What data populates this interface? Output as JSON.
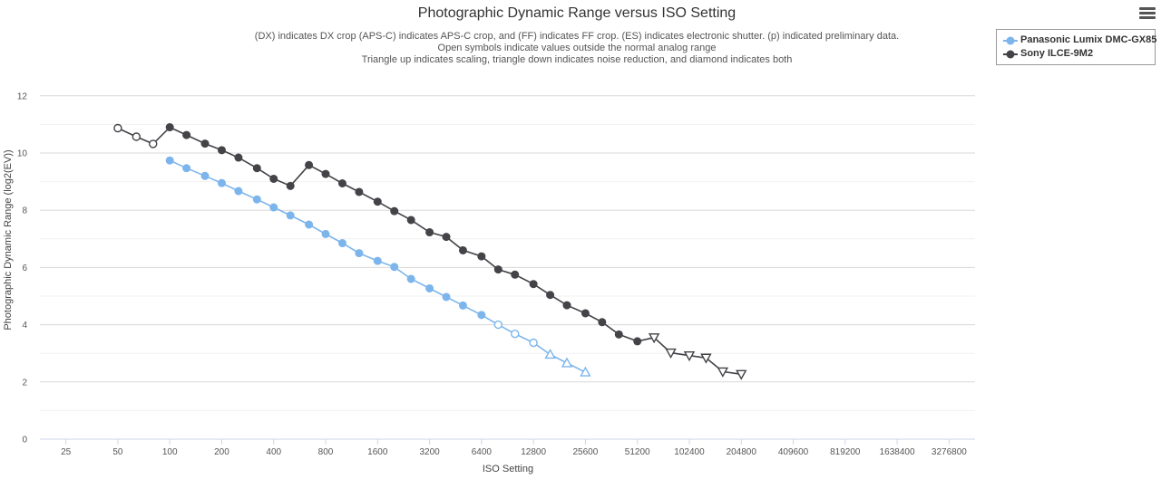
{
  "chart_data": {
    "type": "line",
    "title": "Photographic Dynamic Range versus ISO Setting",
    "subtitles": [
      "(DX) indicates DX crop (APS-C) indicates APS-C crop, and (FF) indicates FF crop. (ES) indicates electronic shutter. (p) indicated preliminary data.",
      "Open symbols indicate values outside the normal analog range",
      "Triangle up indicates scaling, triangle down indicates noise reduction, and diamond indicates both"
    ],
    "xlabel": "ISO Setting",
    "ylabel": "Photographic Dynamic Range (log2(EV))",
    "x_scale": "log2",
    "x_ticks": [
      25,
      50,
      100,
      200,
      400,
      800,
      1600,
      3200,
      6400,
      12800,
      25600,
      51200,
      102400,
      204800,
      409600,
      819200,
      1638400,
      3276800
    ],
    "x_tick_labels": [
      "25",
      "50",
      "100",
      "200",
      "400",
      "800",
      "1600",
      "3200",
      "6400",
      "12800",
      "25600",
      "51200",
      "102400",
      "204800",
      "409600",
      "819200",
      "1638400",
      "3276800"
    ],
    "ylim": [
      0,
      12.5
    ],
    "y_ticks": [
      0,
      2,
      4,
      6,
      8,
      10,
      12
    ],
    "grid": true,
    "legend_position": "top-right",
    "series": [
      {
        "name": "Panasonic Lumix DMC-GX85",
        "color": "#7cb5ec",
        "points": [
          {
            "x": 100,
            "y": 9.74,
            "marker": "circle"
          },
          {
            "x": 125,
            "y": 9.47,
            "marker": "circle"
          },
          {
            "x": 160,
            "y": 9.2,
            "marker": "circle"
          },
          {
            "x": 200,
            "y": 8.95,
            "marker": "circle"
          },
          {
            "x": 250,
            "y": 8.67,
            "marker": "circle"
          },
          {
            "x": 320,
            "y": 8.38,
            "marker": "circle"
          },
          {
            "x": 400,
            "y": 8.1,
            "marker": "circle"
          },
          {
            "x": 500,
            "y": 7.82,
            "marker": "circle"
          },
          {
            "x": 640,
            "y": 7.5,
            "marker": "circle"
          },
          {
            "x": 800,
            "y": 7.17,
            "marker": "circle"
          },
          {
            "x": 1000,
            "y": 6.85,
            "marker": "circle"
          },
          {
            "x": 1250,
            "y": 6.5,
            "marker": "circle"
          },
          {
            "x": 1600,
            "y": 6.23,
            "marker": "circle"
          },
          {
            "x": 2000,
            "y": 6.02,
            "marker": "circle"
          },
          {
            "x": 2500,
            "y": 5.6,
            "marker": "circle"
          },
          {
            "x": 3200,
            "y": 5.27,
            "marker": "circle"
          },
          {
            "x": 4000,
            "y": 4.97,
            "marker": "circle"
          },
          {
            "x": 5000,
            "y": 4.67,
            "marker": "circle"
          },
          {
            "x": 6400,
            "y": 4.34,
            "marker": "circle"
          },
          {
            "x": 8000,
            "y": 4.0,
            "marker": "circle-open"
          },
          {
            "x": 10000,
            "y": 3.68,
            "marker": "circle-open"
          },
          {
            "x": 12800,
            "y": 3.37,
            "marker": "circle-open"
          },
          {
            "x": 16000,
            "y": 2.96,
            "marker": "triangle-up-open"
          },
          {
            "x": 20000,
            "y": 2.66,
            "marker": "triangle-up-open"
          },
          {
            "x": 25600,
            "y": 2.34,
            "marker": "triangle-up-open"
          }
        ]
      },
      {
        "name": "Sony ILCE-9M2",
        "color": "#434348",
        "points": [
          {
            "x": 50,
            "y": 10.87,
            "marker": "circle-open"
          },
          {
            "x": 64,
            "y": 10.57,
            "marker": "circle-open"
          },
          {
            "x": 80,
            "y": 10.32,
            "marker": "circle-open"
          },
          {
            "x": 100,
            "y": 10.9,
            "marker": "circle"
          },
          {
            "x": 125,
            "y": 10.63,
            "marker": "circle"
          },
          {
            "x": 160,
            "y": 10.33,
            "marker": "circle"
          },
          {
            "x": 200,
            "y": 10.1,
            "marker": "circle"
          },
          {
            "x": 250,
            "y": 9.84,
            "marker": "circle"
          },
          {
            "x": 320,
            "y": 9.47,
            "marker": "circle"
          },
          {
            "x": 400,
            "y": 9.1,
            "marker": "circle"
          },
          {
            "x": 500,
            "y": 8.85,
            "marker": "circle"
          },
          {
            "x": 640,
            "y": 9.58,
            "marker": "circle"
          },
          {
            "x": 800,
            "y": 9.27,
            "marker": "circle"
          },
          {
            "x": 1000,
            "y": 8.94,
            "marker": "circle"
          },
          {
            "x": 1250,
            "y": 8.64,
            "marker": "circle"
          },
          {
            "x": 1600,
            "y": 8.3,
            "marker": "circle"
          },
          {
            "x": 2000,
            "y": 7.97,
            "marker": "circle"
          },
          {
            "x": 2500,
            "y": 7.66,
            "marker": "circle"
          },
          {
            "x": 3200,
            "y": 7.23,
            "marker": "circle"
          },
          {
            "x": 4000,
            "y": 7.07,
            "marker": "circle"
          },
          {
            "x": 5000,
            "y": 6.6,
            "marker": "circle"
          },
          {
            "x": 6400,
            "y": 6.39,
            "marker": "circle"
          },
          {
            "x": 8000,
            "y": 5.93,
            "marker": "circle"
          },
          {
            "x": 10000,
            "y": 5.75,
            "marker": "circle"
          },
          {
            "x": 12800,
            "y": 5.42,
            "marker": "circle"
          },
          {
            "x": 16000,
            "y": 5.04,
            "marker": "circle"
          },
          {
            "x": 20000,
            "y": 4.68,
            "marker": "circle"
          },
          {
            "x": 25600,
            "y": 4.4,
            "marker": "circle"
          },
          {
            "x": 32000,
            "y": 4.09,
            "marker": "circle"
          },
          {
            "x": 40000,
            "y": 3.66,
            "marker": "circle"
          },
          {
            "x": 51200,
            "y": 3.42,
            "marker": "circle"
          },
          {
            "x": 64000,
            "y": 3.55,
            "marker": "triangle-down-open"
          },
          {
            "x": 80000,
            "y": 3.02,
            "marker": "triangle-down-open"
          },
          {
            "x": 102400,
            "y": 2.92,
            "marker": "triangle-down-open"
          },
          {
            "x": 128000,
            "y": 2.84,
            "marker": "triangle-down-open"
          },
          {
            "x": 160000,
            "y": 2.36,
            "marker": "triangle-down-open"
          },
          {
            "x": 204800,
            "y": 2.27,
            "marker": "triangle-down-open"
          }
        ]
      }
    ]
  }
}
